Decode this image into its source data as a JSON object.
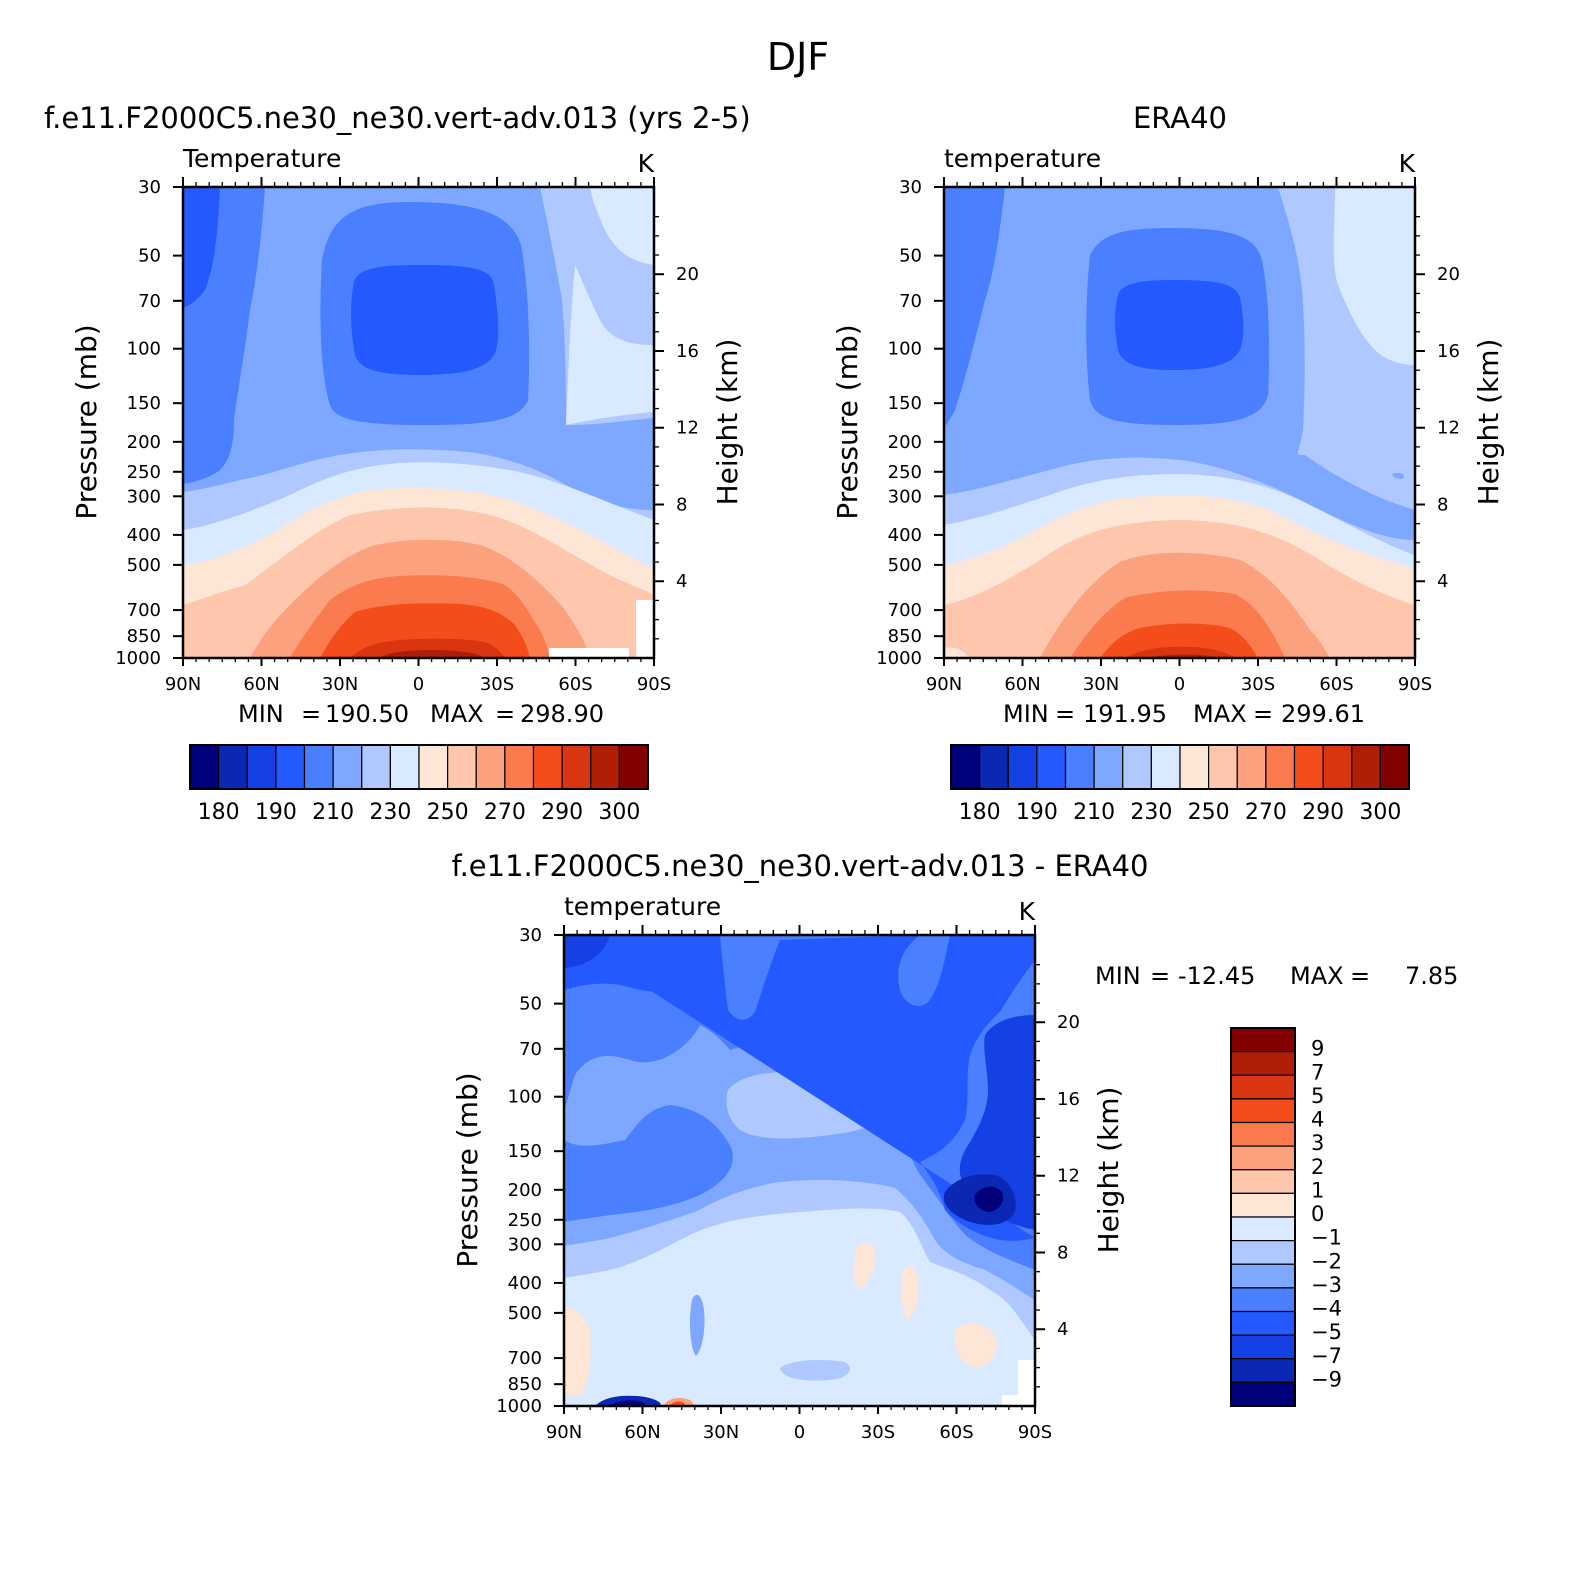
{
  "figure": {
    "title": "DJF"
  },
  "chart_data": [
    {
      "type": "heatmap",
      "id": "model",
      "title": "f.e11.F2000C5.ne30_ne30.vert-adv.013 (yrs 2-5)",
      "subtitle": "Temperature",
      "units": "K",
      "xlabel": "",
      "ylabel": "Pressure (mb)",
      "ylabel_right": "Height (km)",
      "x_ticks": [
        "90N",
        "60N",
        "30N",
        "0",
        "30S",
        "60S",
        "90S"
      ],
      "y_ticks": [
        "30",
        "50",
        "70",
        "100",
        "150",
        "200",
        "250",
        "300",
        "400",
        "500",
        "700",
        "850",
        "1000"
      ],
      "height_ticks": [
        "20",
        "16",
        "12",
        "8",
        "4"
      ],
      "stats": {
        "min_label": "MIN",
        "min": "190.50",
        "max_label": "MAX",
        "max": "298.90"
      },
      "colorbar": {
        "orientation": "horizontal",
        "colors": [
          "#00007a",
          "#0b28b4",
          "#1541e4",
          "#2459ff",
          "#4a80ff",
          "#7ea7ff",
          "#afc8ff",
          "#d9e9ff",
          "#fde6d6",
          "#fdc6ad",
          "#fca17e",
          "#fb7b4e",
          "#f44d1b",
          "#d83510",
          "#b01e08",
          "#820000"
        ],
        "labels": [
          "180",
          "190",
          "210",
          "230",
          "250",
          "270",
          "290",
          "300"
        ]
      }
    },
    {
      "type": "heatmap",
      "id": "obs",
      "title": "ERA40",
      "subtitle": "temperature",
      "units": "K",
      "xlabel": "",
      "ylabel": "Pressure (mb)",
      "ylabel_right": "Height (km)",
      "x_ticks": [
        "90N",
        "60N",
        "30N",
        "0",
        "30S",
        "60S",
        "90S"
      ],
      "y_ticks": [
        "30",
        "50",
        "70",
        "100",
        "150",
        "200",
        "250",
        "300",
        "400",
        "500",
        "700",
        "850",
        "1000"
      ],
      "height_ticks": [
        "20",
        "16",
        "12",
        "8",
        "4"
      ],
      "stats": {
        "min_label": "MIN",
        "min": "191.95",
        "max_label": "MAX",
        "max": "299.61"
      },
      "colorbar": {
        "orientation": "horizontal",
        "colors": [
          "#00007a",
          "#0b28b4",
          "#1541e4",
          "#2459ff",
          "#4a80ff",
          "#7ea7ff",
          "#afc8ff",
          "#d9e9ff",
          "#fde6d6",
          "#fdc6ad",
          "#fca17e",
          "#fb7b4e",
          "#f44d1b",
          "#d83510",
          "#b01e08",
          "#820000"
        ],
        "labels": [
          "180",
          "190",
          "210",
          "230",
          "250",
          "270",
          "290",
          "300"
        ]
      }
    },
    {
      "type": "heatmap",
      "id": "diff",
      "title": "f.e11.F2000C5.ne30_ne30.vert-adv.013 - ERA40",
      "subtitle": "temperature",
      "units": "K",
      "xlabel": "",
      "ylabel": "Pressure (mb)",
      "ylabel_right": "Height (km)",
      "x_ticks": [
        "90N",
        "60N",
        "30N",
        "0",
        "30S",
        "60S",
        "90S"
      ],
      "y_ticks": [
        "30",
        "50",
        "70",
        "100",
        "150",
        "200",
        "250",
        "300",
        "400",
        "500",
        "700",
        "850",
        "1000"
      ],
      "height_ticks": [
        "20",
        "16",
        "12",
        "8",
        "4"
      ],
      "stats": {
        "min_label": "MIN",
        "min": "-12.45",
        "max_label": "MAX",
        "max": "7.85"
      },
      "colorbar": {
        "orientation": "vertical",
        "colors": [
          "#820000",
          "#b01e08",
          "#d83510",
          "#f44d1b",
          "#fb7b4e",
          "#fca17e",
          "#fdc6ad",
          "#fde6d6",
          "#d9e9ff",
          "#afc8ff",
          "#7ea7ff",
          "#4a80ff",
          "#2459ff",
          "#1541e4",
          "#0b28b4",
          "#00007a"
        ],
        "labels": [
          "9",
          "7",
          "5",
          "4",
          "3",
          "2",
          "1",
          "0",
          "-1",
          "-2",
          "-3",
          "-4",
          "-5",
          "-7",
          "-9"
        ]
      }
    }
  ]
}
